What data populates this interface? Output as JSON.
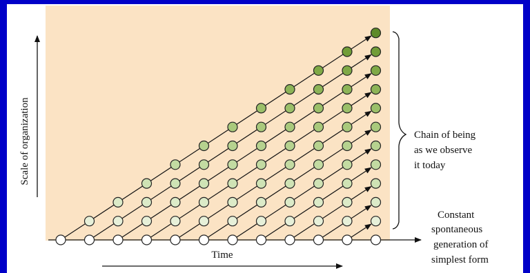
{
  "background_color": "#0000c8",
  "panel": {
    "white": "#ffffff",
    "plot_area": "#fbe3c4"
  },
  "labels": {
    "y_axis": "Scale of organization",
    "x_axis": "Time",
    "bracket": [
      "Chain of being",
      "as we observe",
      "it today"
    ],
    "right": [
      "Constant",
      "spontaneous",
      "generation of",
      "simplest form"
    ]
  },
  "grid": {
    "columns": 12,
    "max_level": 11
  },
  "colors": {
    "level": [
      "#ffffff",
      "#e7f0d9",
      "#dcebc8",
      "#cfe3b5",
      "#c3dba2",
      "#b6d28f",
      "#a9c97c",
      "#9bbf69",
      "#8db457",
      "#7fa946",
      "#719d37",
      "#5e8a28"
    ],
    "stroke": "#222222"
  }
}
